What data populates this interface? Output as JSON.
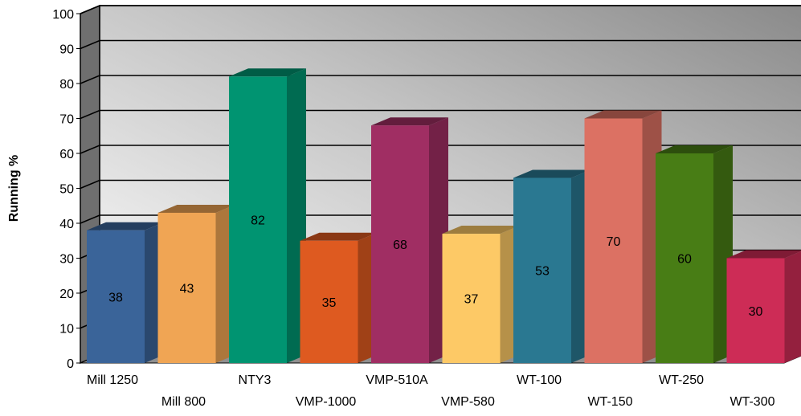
{
  "chart_data": {
    "type": "bar",
    "ylabel": "Running %",
    "xlabel": "",
    "ylim": [
      0,
      100
    ],
    "yticks": [
      "0",
      "10",
      "20",
      "30",
      "40",
      "50",
      "60",
      "70",
      "80",
      "90",
      "100"
    ],
    "grid": true,
    "categories": [
      "Mill 1250",
      "Mill 800",
      "NTY3",
      "VMP-1000",
      "VMP-510A",
      "VMP-580",
      "WT-100",
      "WT-150",
      "WT-250",
      "WT-300"
    ],
    "values": [
      38,
      43,
      82,
      35,
      68,
      37,
      53,
      70,
      60,
      30
    ],
    "labels": [
      "38",
      "43",
      "82",
      "35",
      "68",
      "37",
      "53",
      "70",
      "60",
      "30"
    ],
    "colors": [
      "#3A6499",
      "#F0A554",
      "#009471",
      "#DE5A20",
      "#A02E63",
      "#FDC966",
      "#2A7891",
      "#DC7163",
      "#487D15",
      "#CD2C56"
    ]
  }
}
